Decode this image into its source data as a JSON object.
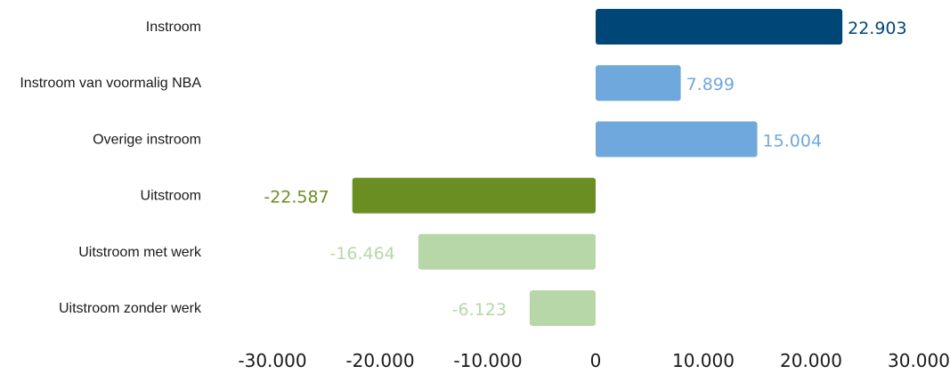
{
  "chart_data": {
    "type": "bar",
    "orientation": "horizontal",
    "categories": [
      "Instroom",
      "Instroom van voormalig NBA",
      "Overige instroom",
      "Uitstroom",
      "Uitstroom met werk",
      "Uitstroom zonder werk"
    ],
    "values": [
      22903,
      7899,
      15004,
      -22587,
      -16464,
      -6123
    ],
    "value_labels": [
      "22.903",
      "7.899",
      "15.004",
      "-22.587",
      "-16.464",
      "-6.123"
    ],
    "colors": [
      "#004677",
      "#6FA8DC",
      "#6FA8DC",
      "#6B8E23",
      "#B7D7A8",
      "#B7D7A8"
    ],
    "label_colors": [
      "#004677",
      "#6FA8DC",
      "#6FA8DC",
      "#6B8E23",
      "#B7D7A8",
      "#B7D7A8"
    ],
    "xlim": [
      -30000,
      30000
    ],
    "x_ticks": [
      -30000,
      -20000,
      -10000,
      0,
      10000,
      20000,
      30000
    ],
    "x_tick_labels": [
      "-30.000",
      "-20.000",
      "-10.000",
      "0",
      "10.000",
      "20.000",
      "30.000"
    ],
    "grid": false,
    "legend": "none"
  }
}
